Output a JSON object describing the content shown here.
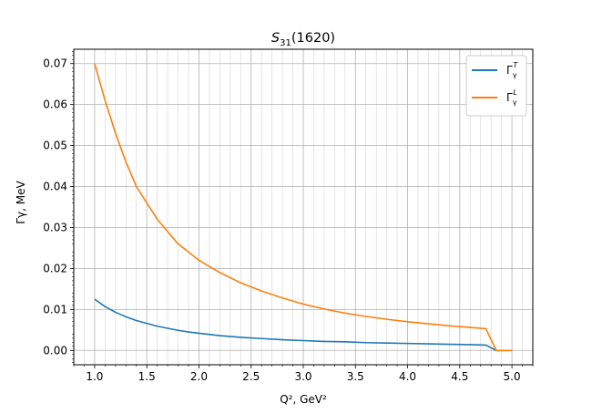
{
  "chart_data": {
    "type": "line",
    "title": "S31(1620)",
    "title_main": "S",
    "title_sub": "31",
    "title_rest": "(1620)",
    "xlabel": "Q², GeV²",
    "ylabel": "Γγ, MeV",
    "xlim": [
      0.8,
      5.2
    ],
    "ylim": [
      -0.0035,
      0.0735
    ],
    "x_ticks": [
      1.0,
      1.5,
      2.0,
      2.5,
      3.0,
      3.5,
      4.0,
      4.5,
      5.0
    ],
    "x_tick_labels": [
      "1.0",
      "1.5",
      "2.0",
      "2.5",
      "3.0",
      "3.5",
      "4.0",
      "4.5",
      "5.0"
    ],
    "y_ticks": [
      0.0,
      0.01,
      0.02,
      0.03,
      0.04,
      0.05,
      0.06,
      0.07
    ],
    "y_tick_labels": [
      "0.00",
      "0.01",
      "0.02",
      "0.03",
      "0.04",
      "0.05",
      "0.06",
      "0.07"
    ],
    "grid": true,
    "legend_position": "top-right",
    "series": [
      {
        "name": "Γγ^T",
        "legend_base": "Γ",
        "legend_sub": "γ",
        "legend_sup": "T",
        "color": "#1f77b4",
        "x": [
          1.0,
          1.1,
          1.2,
          1.3,
          1.4,
          1.5,
          1.6,
          1.7,
          1.8,
          1.9,
          2.0,
          2.2,
          2.4,
          2.6,
          2.8,
          3.0,
          3.2,
          3.4,
          3.6,
          3.8,
          4.0,
          4.2,
          4.4,
          4.6,
          4.75,
          4.85,
          5.0
        ],
        "y": [
          0.0125,
          0.0107,
          0.0093,
          0.0082,
          0.0073,
          0.0066,
          0.0059,
          0.0054,
          0.0049,
          0.0045,
          0.0042,
          0.0036,
          0.0032,
          0.0029,
          0.0026,
          0.0024,
          0.0022,
          0.0021,
          0.0019,
          0.0018,
          0.0017,
          0.0016,
          0.0015,
          0.0014,
          0.0013,
          0.0,
          0.0
        ]
      },
      {
        "name": "Γγ^L",
        "legend_base": "Γ",
        "legend_sub": "γ",
        "legend_sup": "L",
        "color": "#ff7f0e",
        "x": [
          1.0,
          1.1,
          1.2,
          1.3,
          1.4,
          1.5,
          1.6,
          1.7,
          1.8,
          1.9,
          2.0,
          2.2,
          2.4,
          2.6,
          2.8,
          3.0,
          3.2,
          3.4,
          3.6,
          3.8,
          4.0,
          4.2,
          4.4,
          4.6,
          4.75,
          4.85,
          5.0
        ],
        "y": [
          0.07,
          0.061,
          0.053,
          0.046,
          0.04,
          0.036,
          0.032,
          0.029,
          0.026,
          0.024,
          0.022,
          0.019,
          0.0165,
          0.0145,
          0.0128,
          0.0113,
          0.0101,
          0.0091,
          0.0083,
          0.0076,
          0.007,
          0.0065,
          0.006,
          0.0056,
          0.0053,
          0.0,
          0.0
        ]
      }
    ]
  }
}
